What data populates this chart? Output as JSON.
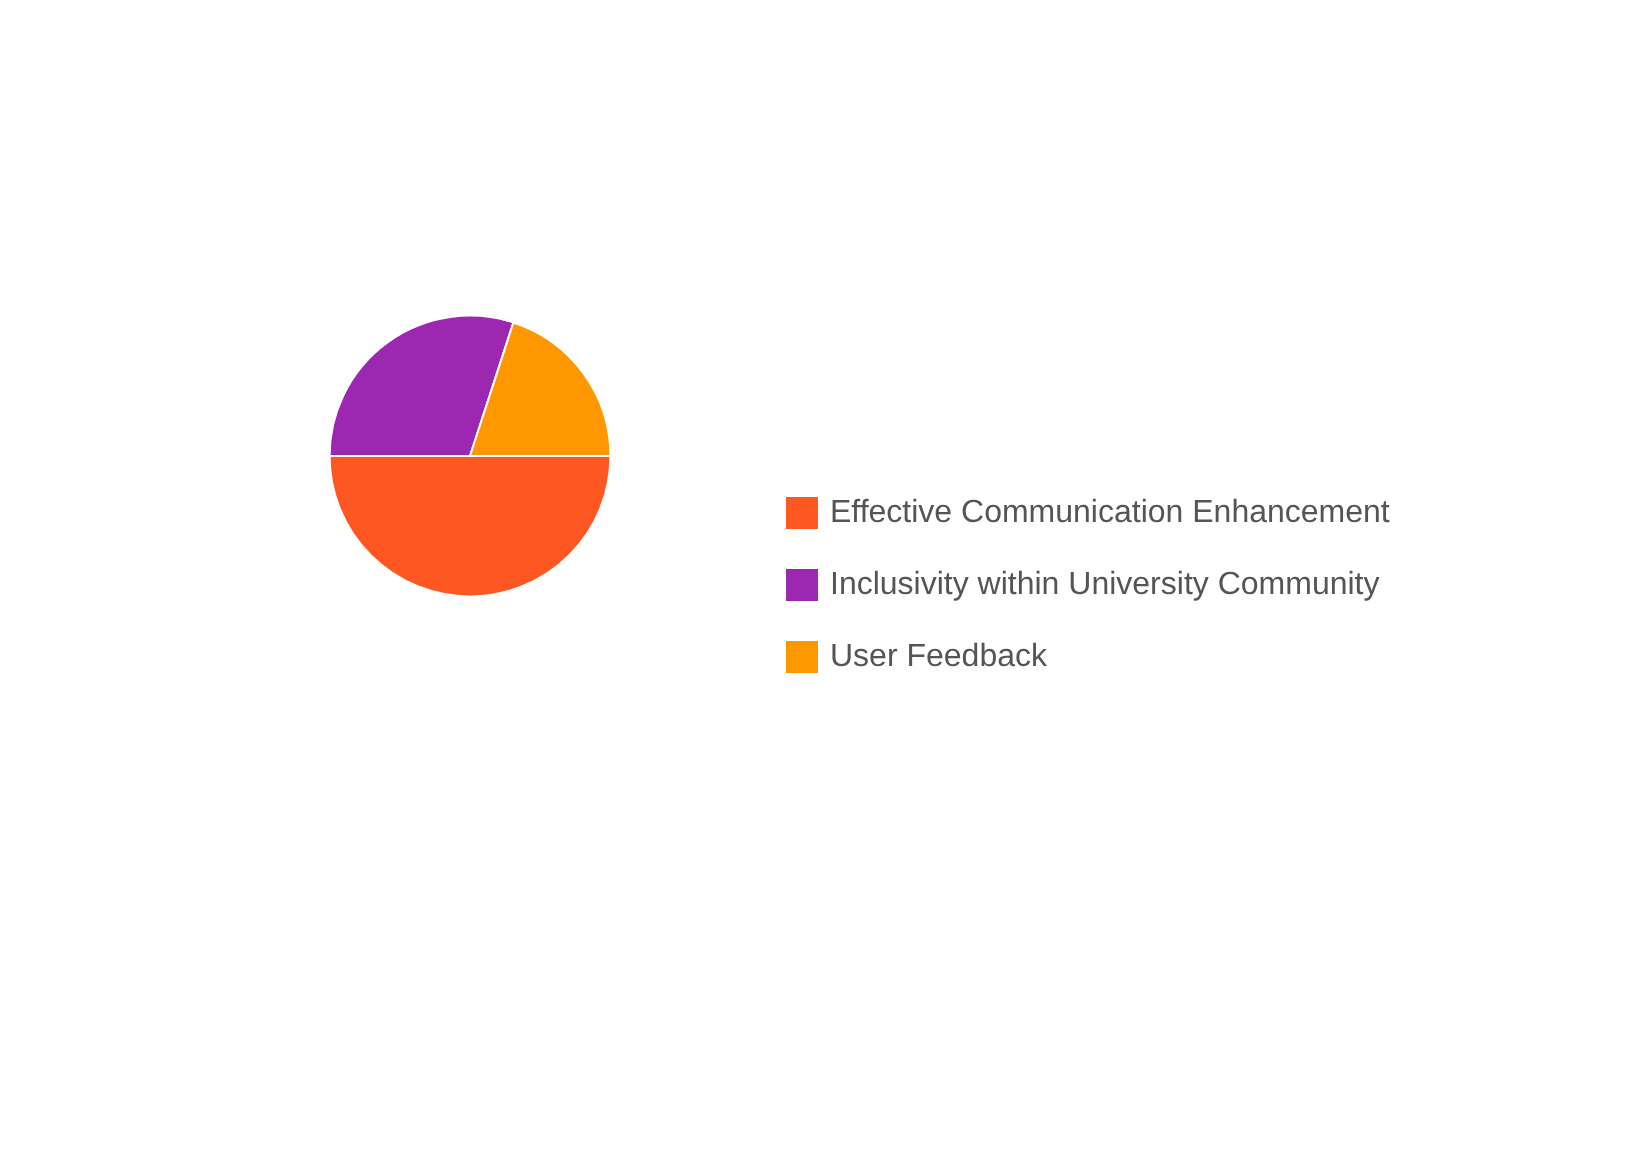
{
  "chart_data": {
    "type": "pie",
    "categories": [
      "Effective Communication Enhancement",
      "Inclusivity within University Community",
      "User Feedback"
    ],
    "values": [
      50,
      30,
      20
    ],
    "colors": [
      "#ff5722",
      "#9c27b0",
      "#ff9800"
    ],
    "legend": "right"
  }
}
